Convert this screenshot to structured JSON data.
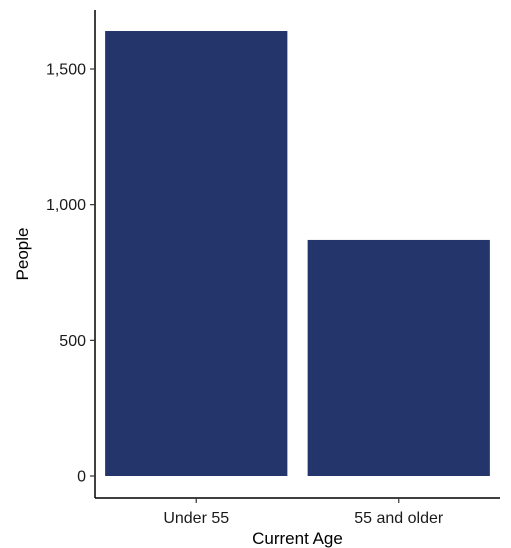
{
  "chart_data": {
    "type": "bar",
    "title": "",
    "xlabel": "Current Age",
    "ylabel": "People",
    "categories": [
      "Under 55",
      "55 and older"
    ],
    "values": [
      1640,
      870
    ],
    "ylim": [
      0,
      1720
    ],
    "yticks": [
      0,
      500,
      1000,
      1500
    ],
    "ytick_labels": [
      "0",
      "500",
      "1,000",
      "1,500"
    ],
    "bar_color": "#24356b",
    "grid": false,
    "legend": "none"
  }
}
